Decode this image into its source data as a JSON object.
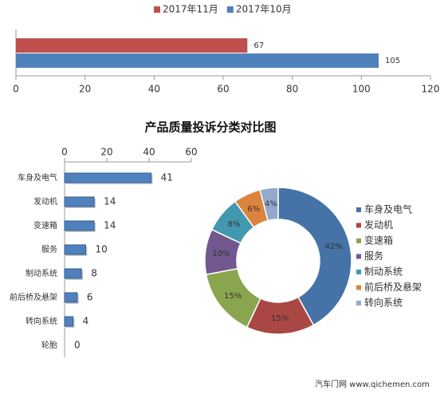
{
  "chart_data": [
    {
      "type": "bar",
      "orientation": "horizontal",
      "categories": [
        null
      ],
      "series": [
        {
          "name": "2017年11月",
          "color": "#c0504d",
          "values": [
            67
          ]
        },
        {
          "name": "2017年10月",
          "color": "#4f81bd",
          "values": [
            105
          ]
        }
      ],
      "xlim": [
        0,
        120
      ],
      "xticks": [
        0,
        20,
        40,
        60,
        80,
        100,
        120
      ],
      "legend": "top",
      "grid": false
    },
    {
      "type": "bar",
      "orientation": "horizontal",
      "title": "产品质量投诉分类对比图",
      "categories": [
        "车身及电气",
        "发动机",
        "变速箱",
        "服务",
        "制动系统",
        "前后桥及悬架",
        "转向系统",
        "轮胎"
      ],
      "values": [
        41,
        14,
        14,
        10,
        8,
        6,
        4,
        0
      ],
      "color": "#4f81bd",
      "xlim": [
        0,
        60
      ],
      "xticks": [
        0,
        20,
        40,
        60
      ],
      "grid": false
    },
    {
      "type": "donut",
      "categories": [
        "车身及电气",
        "发动机",
        "变速箱",
        "服务",
        "制动系统",
        "前后桥及悬架",
        "转向系统"
      ],
      "values": [
        42,
        15,
        15,
        10,
        8,
        6,
        4
      ],
      "value_labels": [
        "42%",
        "15%",
        "15%",
        "10%",
        "8%",
        "6%",
        "4%"
      ],
      "colors": [
        "#4572a7",
        "#aa4643",
        "#89a54e",
        "#71588f",
        "#4198af",
        "#db843d",
        "#93a9cf"
      ],
      "legend": "right"
    }
  ],
  "footer": "汽车门网 www.qichemen.com"
}
